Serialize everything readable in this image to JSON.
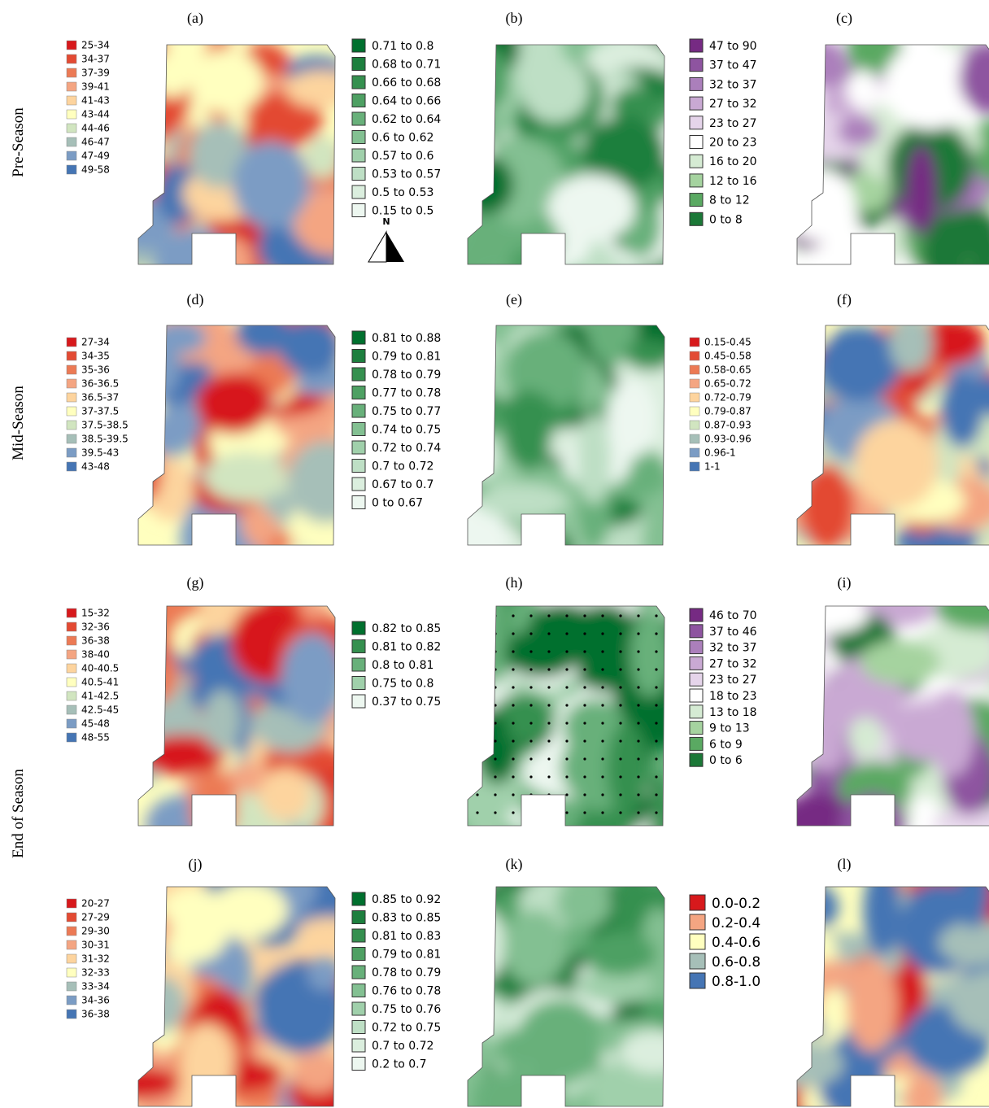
{
  "rows": [
    "Pre-Season",
    "Mid-Season",
    "End of Season"
  ],
  "panels": [
    {
      "label": "(a)",
      "legend": [
        {
          "label": "25-34",
          "color": "#d7191c"
        },
        {
          "label": "34-37",
          "color": "#e34a33"
        },
        {
          "label": "37-39",
          "color": "#ec7a55"
        },
        {
          "label": "39-41",
          "color": "#f4a582"
        },
        {
          "label": "41-43",
          "color": "#fdd49e"
        },
        {
          "label": "43-44",
          "color": "#ffffbf"
        },
        {
          "label": "44-46",
          "color": "#d1e5c0"
        },
        {
          "label": "46-47",
          "color": "#a6bfb8"
        },
        {
          "label": "47-49",
          "color": "#7b9cc4"
        },
        {
          "label": "49-58",
          "color": "#4575b4"
        }
      ]
    },
    {
      "label": "(b)",
      "legend": [
        {
          "label": "0.71 to 0.8",
          "color": "#00702e"
        },
        {
          "label": "0.68 to 0.71",
          "color": "#1d7f3e"
        },
        {
          "label": "0.66 to 0.68",
          "color": "#35904f"
        },
        {
          "label": "0.64 to 0.66",
          "color": "#4ea063"
        },
        {
          "label": "0.62 to 0.64",
          "color": "#68b07a"
        },
        {
          "label": "0.6 to 0.62",
          "color": "#83c092"
        },
        {
          "label": "0.57 to 0.6",
          "color": "#a0d0ab"
        },
        {
          "label": "0.53 to 0.57",
          "color": "#bedfc5"
        },
        {
          "label": "0.5 to 0.53",
          "color": "#dbeede"
        },
        {
          "label": "0.15 to 0.5",
          "color": "#edf7f0"
        }
      ],
      "north": "N"
    },
    {
      "label": "(c)",
      "legend": [
        {
          "label": "47 to 90",
          "color": "#762a83"
        },
        {
          "label": "37 to 47",
          "color": "#8e54a0"
        },
        {
          "label": "32 to 37",
          "color": "#ab7fbb"
        },
        {
          "label": "27 to 32",
          "color": "#c9a9d3"
        },
        {
          "label": "23 to 27",
          "color": "#e5d4ea"
        },
        {
          "label": "20 to 23",
          "color": "#ffffff"
        },
        {
          "label": "16 to 20",
          "color": "#d5ebd3"
        },
        {
          "label": "12 to 16",
          "color": "#a5d39f"
        },
        {
          "label": "8 to 12",
          "color": "#5aa962"
        },
        {
          "label": "0 to 8",
          "color": "#1b7837"
        }
      ]
    },
    {
      "label": "(d)",
      "legend": [
        {
          "label": "27-34",
          "color": "#d7191c"
        },
        {
          "label": "34-35",
          "color": "#e34a33"
        },
        {
          "label": "35-36",
          "color": "#ec7a55"
        },
        {
          "label": "36-36.5",
          "color": "#f4a582"
        },
        {
          "label": "36.5-37",
          "color": "#fdd49e"
        },
        {
          "label": "37-37.5",
          "color": "#ffffbf"
        },
        {
          "label": "37.5-38.5",
          "color": "#d1e5c0"
        },
        {
          "label": "38.5-39.5",
          "color": "#a6bfb8"
        },
        {
          "label": "39.5-43",
          "color": "#7b9cc4"
        },
        {
          "label": "43-48",
          "color": "#4575b4"
        }
      ]
    },
    {
      "label": "(e)",
      "legend": [
        {
          "label": "0.81 to 0.88",
          "color": "#00702e"
        },
        {
          "label": "0.79 to 0.81",
          "color": "#1d7f3e"
        },
        {
          "label": "0.78 to 0.79",
          "color": "#35904f"
        },
        {
          "label": "0.77 to 0.78",
          "color": "#4ea063"
        },
        {
          "label": "0.75 to 0.77",
          "color": "#68b07a"
        },
        {
          "label": "0.74 to 0.75",
          "color": "#83c092"
        },
        {
          "label": "0.72 to 0.74",
          "color": "#a0d0ab"
        },
        {
          "label": "0.7 to 0.72",
          "color": "#bedfc5"
        },
        {
          "label": "0.67 to 0.7",
          "color": "#dbeede"
        },
        {
          "label": "0 to 0.67",
          "color": "#edf7f0"
        }
      ]
    },
    {
      "label": "(f)",
      "legend": [
        {
          "label": "0.15-0.45",
          "color": "#d7191c"
        },
        {
          "label": "0.45-0.58",
          "color": "#e34a33"
        },
        {
          "label": "0.58-0.65",
          "color": "#ec7a55"
        },
        {
          "label": "0.65-0.72",
          "color": "#f4a582"
        },
        {
          "label": "0.72-0.79",
          "color": "#fdd49e"
        },
        {
          "label": "0.79-0.87",
          "color": "#ffffbf"
        },
        {
          "label": "0.87-0.93",
          "color": "#d1e5c0"
        },
        {
          "label": "0.93-0.96",
          "color": "#a6bfb8"
        },
        {
          "label": "0.96-1",
          "color": "#7b9cc4"
        },
        {
          "label": "1-1",
          "color": "#4575b4"
        }
      ]
    },
    {
      "label": "(g)",
      "legend": [
        {
          "label": "15-32",
          "color": "#d7191c"
        },
        {
          "label": "32-36",
          "color": "#e34a33"
        },
        {
          "label": "36-38",
          "color": "#ec7a55"
        },
        {
          "label": "38-40",
          "color": "#f4a582"
        },
        {
          "label": "40-40.5",
          "color": "#fdd49e"
        },
        {
          "label": "40.5-41",
          "color": "#ffffbf"
        },
        {
          "label": "41-42.5",
          "color": "#d1e5c0"
        },
        {
          "label": "42.5-45",
          "color": "#a6bfb8"
        },
        {
          "label": "45-48",
          "color": "#7b9cc4"
        },
        {
          "label": "48-55",
          "color": "#4575b4"
        }
      ]
    },
    {
      "label": "(h)",
      "legend": [
        {
          "label": "0.82 to 0.85",
          "color": "#00702e"
        },
        {
          "label": "0.81 to 0.82",
          "color": "#35904f"
        },
        {
          "label": "0.8 to 0.81",
          "color": "#68b07a"
        },
        {
          "label": "0.75 to 0.8",
          "color": "#a0d0ab"
        },
        {
          "label": "0.37 to 0.75",
          "color": "#edf7f0"
        }
      ]
    },
    {
      "label": "(i)",
      "legend": [
        {
          "label": "46 to 70",
          "color": "#762a83"
        },
        {
          "label": "37 to 46",
          "color": "#8e54a0"
        },
        {
          "label": "32 to 37",
          "color": "#ab7fbb"
        },
        {
          "label": "27 to 32",
          "color": "#c9a9d3"
        },
        {
          "label": "23 to 27",
          "color": "#e5d4ea"
        },
        {
          "label": "18 to 23",
          "color": "#ffffff"
        },
        {
          "label": "13 to 18",
          "color": "#d5ebd3"
        },
        {
          "label": "9 to 13",
          "color": "#a5d39f"
        },
        {
          "label": "6 to 9",
          "color": "#5aa962"
        },
        {
          "label": "0 to 6",
          "color": "#1b7837"
        }
      ]
    },
    {
      "label": "(j)",
      "legend": [
        {
          "label": "20-27",
          "color": "#d7191c"
        },
        {
          "label": "27-29",
          "color": "#e34a33"
        },
        {
          "label": "29-30",
          "color": "#ec7a55"
        },
        {
          "label": "30-31",
          "color": "#f4a582"
        },
        {
          "label": "31-32",
          "color": "#fdd49e"
        },
        {
          "label": "32-33",
          "color": "#ffffbf"
        },
        {
          "label": "33-34",
          "color": "#a6bfb8"
        },
        {
          "label": "34-36",
          "color": "#7b9cc4"
        },
        {
          "label": "36-38",
          "color": "#4575b4"
        }
      ]
    },
    {
      "label": "(k)",
      "legend": [
        {
          "label": "0.85 to 0.92",
          "color": "#00702e"
        },
        {
          "label": "0.83 to 0.85",
          "color": "#1d7f3e"
        },
        {
          "label": "0.81 to 0.83",
          "color": "#35904f"
        },
        {
          "label": "0.79 to 0.81",
          "color": "#4ea063"
        },
        {
          "label": "0.78 to 0.79",
          "color": "#68b07a"
        },
        {
          "label": "0.76 to 0.78",
          "color": "#83c092"
        },
        {
          "label": "0.75 to 0.76",
          "color": "#a0d0ab"
        },
        {
          "label": "0.72 to 0.75",
          "color": "#bedfc5"
        },
        {
          "label": "0.7 to 0.72",
          "color": "#dbeede"
        },
        {
          "label": "0.2 to 0.7",
          "color": "#edf7f0"
        }
      ]
    },
    {
      "label": "(l)",
      "legend": [
        {
          "label": "0.0-0.2",
          "color": "#d7191c"
        },
        {
          "label": "0.2-0.4",
          "color": "#f4a582"
        },
        {
          "label": "0.4-0.6",
          "color": "#ffffbf"
        },
        {
          "label": "0.6-0.8",
          "color": "#a6bfb8"
        },
        {
          "label": "0.8-1.0",
          "color": "#4575b4"
        }
      ]
    }
  ]
}
